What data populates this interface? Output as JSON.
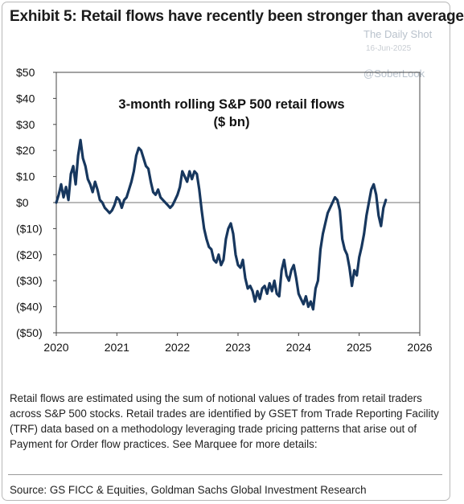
{
  "header": {
    "headline": "Exhibit 5: Retail flows have recently been stronger than average"
  },
  "watermark": {
    "name": "The Daily Shot",
    "date": "16-Jun-2025",
    "handle": "@SoberLook"
  },
  "chart_data": {
    "type": "line",
    "title": "3-month rolling S&P 500 retail flows",
    "subtitle": "($ bn)",
    "xlabel": "",
    "ylabel": "",
    "xlim": [
      2020,
      2026
    ],
    "ylim": [
      -50,
      50
    ],
    "x_ticks": [
      "2020",
      "2021",
      "2022",
      "2023",
      "2024",
      "2025",
      "2026"
    ],
    "y_ticks": [
      "$50",
      "$40",
      "$30",
      "$20",
      "$10",
      "$0",
      "($10)",
      "($20)",
      "($30)",
      "($40)",
      "($50)"
    ],
    "y_tick_values": [
      50,
      40,
      30,
      20,
      10,
      0,
      -10,
      -20,
      -30,
      -40,
      -50
    ],
    "grid": false,
    "line_color": "#17375e",
    "series": [
      {
        "x": [
          2020.0,
          2020.04,
          2020.08,
          2020.12,
          2020.16,
          2020.2,
          2020.24,
          2020.28,
          2020.32,
          2020.36,
          2020.4,
          2020.44,
          2020.48,
          2020.52,
          2020.56,
          2020.6,
          2020.64,
          2020.68,
          2020.72,
          2020.76,
          2020.8,
          2020.84,
          2020.88,
          2020.92,
          2020.96,
          2021.0,
          2021.04,
          2021.08,
          2021.12,
          2021.16,
          2021.2,
          2021.24,
          2021.28,
          2021.32,
          2021.36,
          2021.4,
          2021.44,
          2021.48,
          2021.52,
          2021.56,
          2021.6,
          2021.64,
          2021.68,
          2021.72,
          2021.76,
          2021.8,
          2021.84,
          2021.88,
          2021.92,
          2021.96,
          2022.0,
          2022.04,
          2022.08,
          2022.12,
          2022.16,
          2022.2,
          2022.24,
          2022.28,
          2022.32,
          2022.36,
          2022.4,
          2022.44,
          2022.48,
          2022.52,
          2022.56,
          2022.6,
          2022.64,
          2022.68,
          2022.72,
          2022.76,
          2022.8,
          2022.84,
          2022.88,
          2022.92,
          2022.96,
          2023.0,
          2023.04,
          2023.08,
          2023.12,
          2023.16,
          2023.2,
          2023.24,
          2023.28,
          2023.32,
          2023.36,
          2023.4,
          2023.44,
          2023.48,
          2023.52,
          2023.56,
          2023.6,
          2023.64,
          2023.68,
          2023.72,
          2023.76,
          2023.8,
          2023.84,
          2023.88,
          2023.92,
          2023.96,
          2024.0,
          2024.04,
          2024.08,
          2024.12,
          2024.16,
          2024.2,
          2024.24,
          2024.28,
          2024.32,
          2024.36,
          2024.4,
          2024.44,
          2024.48,
          2024.52,
          2024.56,
          2024.6,
          2024.64,
          2024.68,
          2024.72,
          2024.76,
          2024.8,
          2024.84,
          2024.88,
          2024.92,
          2024.96,
          2025.0,
          2025.04,
          2025.08,
          2025.12,
          2025.16,
          2025.2,
          2025.24,
          2025.28,
          2025.32,
          2025.36,
          2025.4,
          2025.44
        ],
        "values": [
          0,
          3,
          7,
          2,
          6,
          1,
          11,
          14,
          7,
          18,
          24,
          17,
          14,
          9,
          7,
          4,
          8,
          5,
          1,
          0,
          -2,
          -3,
          -4,
          -3,
          -1,
          2,
          1,
          -2,
          1,
          2,
          5,
          8,
          12,
          18,
          21,
          20,
          17,
          14,
          13,
          8,
          4,
          3,
          5,
          2,
          1,
          0,
          -1,
          -2,
          -1,
          1,
          3,
          6,
          12,
          10,
          8,
          12,
          9,
          12,
          11,
          5,
          -3,
          -10,
          -14,
          -17,
          -18,
          -22,
          -23,
          -20,
          -24,
          -22,
          -14,
          -10,
          -8,
          -12,
          -20,
          -24,
          -25,
          -22,
          -29,
          -33,
          -32,
          -34,
          -38,
          -34,
          -37,
          -33,
          -32,
          -35,
          -31,
          -34,
          -30,
          -35,
          -36,
          -26,
          -22,
          -28,
          -30,
          -26,
          -24,
          -29,
          -35,
          -37,
          -39,
          -36,
          -40,
          -38,
          -41,
          -33,
          -30,
          -18,
          -12,
          -8,
          -4,
          -2,
          0,
          2,
          1,
          -3,
          -14,
          -18,
          -20,
          -25,
          -32,
          -26,
          -28,
          -21,
          -17,
          -12,
          -5,
          0,
          5,
          7,
          3,
          -5,
          -9,
          -2,
          1
        ]
      }
    ]
  },
  "caption": "Retail flows are estimated using the sum of notional values of trades from retail traders across S&P 500 stocks. Retail trades are identified by GSET from Trade Reporting Facility (TRF) data based on a methodology leveraging trade pricing patterns that arise out of Payment for Order flow practices. See Marquee for more details:",
  "source": "Source: GS FICC & Equities, Goldman Sachs Global Investment Research"
}
